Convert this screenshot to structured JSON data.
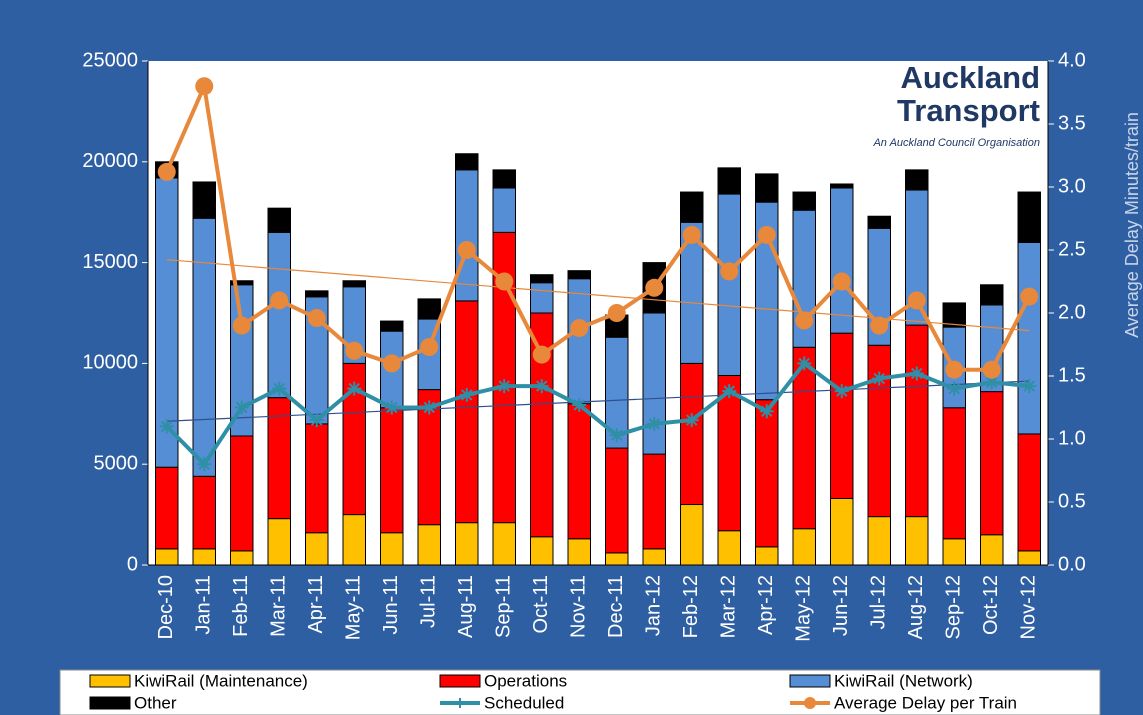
{
  "chart_data": {
    "type": "bar",
    "stacked": true,
    "categories": [
      "Dec-10",
      "Jan-11",
      "Feb-11",
      "Mar-11",
      "Apr-11",
      "May-11",
      "Jun-11",
      "Jul-11",
      "Aug-11",
      "Sep-11",
      "Oct-11",
      "Nov-11",
      "Dec-11",
      "Jan-12",
      "Feb-12",
      "Mar-12",
      "Apr-12",
      "May-12",
      "Jun-12",
      "Jul-12",
      "Aug-12",
      "Sep-12",
      "Oct-12",
      "Nov-12"
    ],
    "series": [
      {
        "name": "KiwiRail (Maintenance)",
        "type": "bar",
        "color": "#FFC000",
        "values": [
          800,
          800,
          700,
          2300,
          1600,
          2500,
          1600,
          2000,
          2100,
          2100,
          1400,
          1300,
          600,
          800,
          3000,
          1700,
          900,
          1800,
          3300,
          2400,
          2400,
          1300,
          1500,
          700
        ]
      },
      {
        "name": "Operations",
        "type": "bar",
        "color": "#FF0000",
        "values": [
          4050,
          3600,
          5700,
          6000,
          5400,
          7500,
          6200,
          6700,
          11000,
          14400,
          11100,
          6700,
          5200,
          4700,
          7000,
          7700,
          7300,
          9000,
          8200,
          8500,
          9500,
          6500,
          7100,
          5800
        ]
      },
      {
        "name": "KiwiRail (Network)",
        "type": "bar",
        "color": "#558ED5",
        "values": [
          14350,
          12800,
          7500,
          8200,
          6300,
          3800,
          3800,
          3500,
          6500,
          2200,
          1500,
          6200,
          5500,
          7000,
          7000,
          9000,
          9800,
          6800,
          7200,
          5800,
          6700,
          4000,
          4300,
          9500
        ]
      },
      {
        "name": "Other",
        "type": "bar",
        "color": "#000000",
        "values": [
          800,
          1800,
          200,
          1200,
          300,
          300,
          500,
          1000,
          800,
          900,
          400,
          400,
          1100,
          2500,
          1500,
          1300,
          1400,
          900,
          200,
          600,
          1000,
          1200,
          1000,
          2500
        ]
      },
      {
        "name": "Scheduled",
        "type": "line",
        "axis": "y2",
        "color": "#2F8FA6",
        "marker": "star",
        "trendline": true,
        "values": [
          1.1,
          0.8,
          1.25,
          1.4,
          1.15,
          1.4,
          1.25,
          1.25,
          1.35,
          1.42,
          1.42,
          1.27,
          1.03,
          1.12,
          1.15,
          1.38,
          1.22,
          1.6,
          1.38,
          1.48,
          1.52,
          1.4,
          1.45,
          1.42
        ]
      },
      {
        "name": "Average Delay per Train",
        "type": "line",
        "axis": "y2",
        "color": "#E8883A",
        "marker": "circle",
        "trendline": true,
        "values": [
          3.12,
          3.8,
          1.9,
          2.1,
          1.96,
          1.7,
          1.6,
          1.73,
          2.5,
          2.25,
          1.67,
          1.88,
          2.0,
          2.2,
          2.62,
          2.33,
          2.62,
          1.94,
          2.25,
          1.9,
          2.1,
          1.55,
          1.55,
          2.13
        ]
      }
    ],
    "ylim": [
      0,
      25000
    ],
    "yticks": [
      0,
      5000,
      10000,
      15000,
      20000,
      25000
    ],
    "y2lim": [
      0,
      4
    ],
    "y2ticks": [
      {
        "value": 0,
        "label": "0.0"
      },
      0.5,
      {
        "value": 1,
        "label": "1.0"
      },
      1.5,
      {
        "value": 2,
        "label": "2.0"
      },
      2.5,
      {
        "value": 3,
        "label": "3.0"
      },
      3.5,
      {
        "value": 4,
        "label": "4.0"
      }
    ],
    "y2label": "Average  Delay  Minutes/train",
    "logo": {
      "line1": "Auckland",
      "line2": "Transport",
      "tagline": "An Auckland Council Organisation"
    },
    "legend": "bottom"
  }
}
